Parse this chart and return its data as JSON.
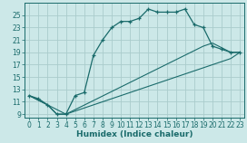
{
  "xlabel": "Humidex (Indice chaleur)",
  "bg_color": "#cce8e8",
  "grid_color": "#aacccc",
  "line_color": "#1a6b6b",
  "xlim": [
    -0.5,
    23.5
  ],
  "ylim": [
    8.5,
    27
  ],
  "xticks": [
    0,
    1,
    2,
    3,
    4,
    5,
    6,
    7,
    8,
    9,
    10,
    11,
    12,
    13,
    14,
    15,
    16,
    17,
    18,
    19,
    20,
    21,
    22,
    23
  ],
  "yticks": [
    9,
    11,
    13,
    15,
    17,
    19,
    21,
    23,
    25
  ],
  "series_main": {
    "x": [
      0,
      1,
      2,
      3,
      4,
      5,
      6,
      7,
      8,
      9,
      10,
      11,
      12,
      13,
      14,
      15,
      16,
      17,
      18,
      19,
      20,
      21,
      22,
      23
    ],
    "y": [
      12,
      11.5,
      10.5,
      9,
      9,
      12,
      12.5,
      18.5,
      21,
      23,
      24,
      24,
      24.5,
      26,
      25.5,
      25.5,
      25.5,
      26,
      23.5,
      23,
      20,
      19.5,
      19,
      19
    ]
  },
  "series_line1": {
    "x": [
      0,
      2,
      3,
      4,
      4,
      19,
      20,
      22,
      23
    ],
    "y": [
      12,
      10.5,
      9,
      9,
      9,
      20,
      20.5,
      19,
      19
    ]
  },
  "series_line2": {
    "x": [
      0,
      4,
      22,
      23
    ],
    "y": [
      12,
      9,
      18,
      19
    ]
  }
}
